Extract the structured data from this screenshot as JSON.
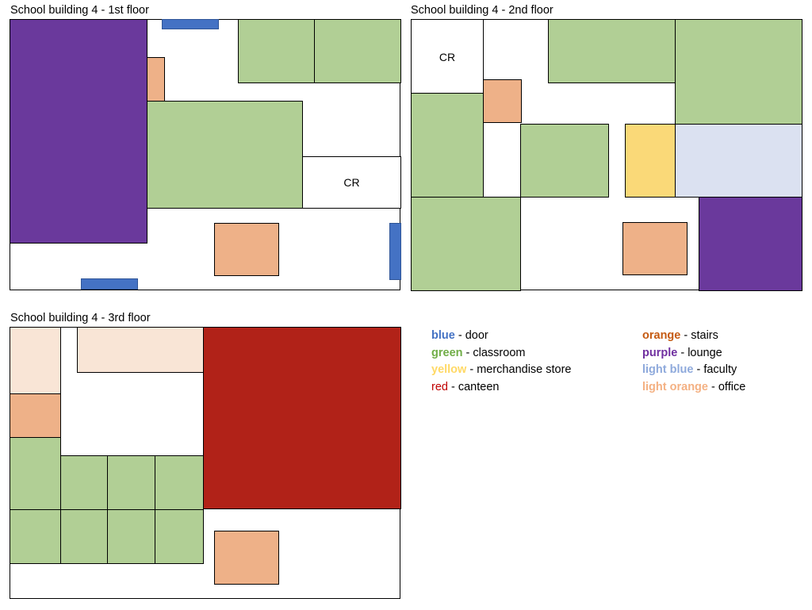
{
  "floors": {
    "first": {
      "title": "School building 4 - 1st floor",
      "cr_label": "CR"
    },
    "second": {
      "title": "School building 4 - 2nd floor",
      "cr_label": "CR"
    },
    "third": {
      "title": "School building 4 - 3rd floor"
    }
  },
  "colors": {
    "door": "#4472c4",
    "classroom": "#b1cf95",
    "merchandise_store": "#fad978",
    "canteen": "#b12218",
    "stairs": "#eeb188",
    "lounge": "#6a399c",
    "faculty": "#dbe1f1",
    "office": "#f9e5d6"
  },
  "legend": [
    {
      "key": "blue",
      "desc": " - door",
      "color": "#4472c4"
    },
    {
      "key": "green",
      "desc": " - classroom",
      "color": "#70ad47"
    },
    {
      "key": "yellow",
      "desc": " - merchandise store",
      "color": "#ffd966"
    },
    {
      "key": "red",
      "desc": " - canteen",
      "color": "#c00000"
    },
    {
      "key": "orange",
      "desc": " - stairs",
      "color": "#c55a11"
    },
    {
      "key": "purple",
      "desc": " - lounge",
      "color": "#7030a0"
    },
    {
      "key": "light blue",
      "desc": " - faculty",
      "color": "#8faadc"
    },
    {
      "key": "light orange",
      "desc": " - office",
      "color": "#f4b183"
    }
  ]
}
